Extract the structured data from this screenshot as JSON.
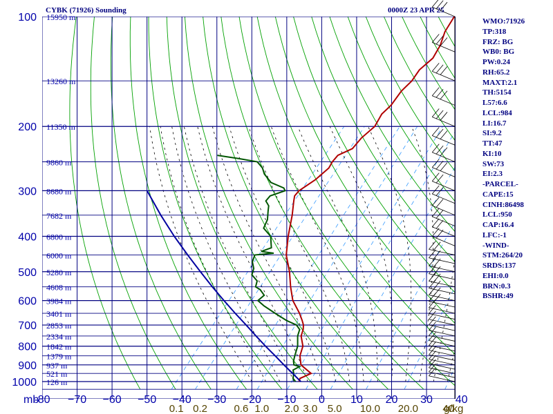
{
  "header": {
    "title": "CYBK (71926) Sounding",
    "time": "0000Z 23 APR 25"
  },
  "indices": [
    "WMO:71926",
    "TP:318",
    "FRZ: BG",
    "WB0: BG",
    "PW:0.24",
    "RH:65.2",
    "MAXT:2.1",
    "TH:5154",
    "L57:6.6",
    "LCL:984",
    "LI:16.7",
    "SI:9.2",
    "TT:47",
    "KI:10",
    "SW:73",
    "EI:2.3",
    "-PARCEL-",
    "CAPE:15",
    "CINH:86498",
    "LCL:950",
    "CAP:16.4",
    "LFC:-1",
    "-WIND-",
    "STM:264/20",
    "SRDS:137",
    "EHI:0.0",
    "BRN:0.3",
    "BSHR:49"
  ],
  "colors": {
    "grid": "#000080",
    "isotherm": "#000080",
    "dry_adiabat": "#00a000",
    "moist_adiabat": "#000000",
    "mixing_ratio": "#3399ff",
    "temperature": "#b00000",
    "dewpoint": "#005500",
    "parcel": "#0000a0",
    "axis_text": "#0000aa",
    "mixing_text": "#554400"
  },
  "chart_data": {
    "type": "line",
    "chart_kind": "skew-T log-p sounding",
    "y_scale": "log",
    "y_unit": "mb",
    "ylim": [
      1050,
      100
    ],
    "xlim": [
      -80,
      0
    ],
    "x_unit": "°C",
    "pressure_ticks": [
      100,
      200,
      300,
      400,
      500,
      600,
      700,
      800,
      900,
      1000
    ],
    "pressure_tick_labels": [
      "100",
      "200",
      "300",
      "400",
      "500",
      "600",
      "700",
      "800",
      "900",
      "1000"
    ],
    "temperature_ticks": [
      -80,
      -70,
      -60,
      -50,
      -40,
      -30,
      -20,
      -10,
      0,
      10,
      20,
      30,
      40
    ],
    "temperature_tick_labels": [
      "-80",
      "−70",
      "−60",
      "−50",
      "−40",
      "−30",
      "−20",
      "−10",
      "0",
      "10",
      "20",
      "30",
      "40"
    ],
    "x_axis_unit_label": "mb",
    "height_levels": [
      {
        "p": 100,
        "label": "15950 m"
      },
      {
        "p": 150,
        "label": "13260 m"
      },
      {
        "p": 200,
        "label": "11350 m"
      },
      {
        "p": 250,
        "label": "9860 m"
      },
      {
        "p": 300,
        "label": "8680 m"
      },
      {
        "p": 350,
        "label": "7682 m"
      },
      {
        "p": 400,
        "label": "6800 m"
      },
      {
        "p": 450,
        "label": "6000 m"
      },
      {
        "p": 500,
        "label": "5280 m"
      },
      {
        "p": 550,
        "label": "4608 m"
      },
      {
        "p": 600,
        "label": "3984 m"
      },
      {
        "p": 650,
        "label": "3401 m"
      },
      {
        "p": 700,
        "label": "2853 m"
      },
      {
        "p": 750,
        "label": "2334 m"
      },
      {
        "p": 800,
        "label": "1842 m"
      },
      {
        "p": 850,
        "label": "1379 m"
      },
      {
        "p": 900,
        "label": "937 m"
      },
      {
        "p": 950,
        "label": "521 m"
      },
      {
        "p": 1000,
        "label": "126 m"
      }
    ],
    "mixing_ratio_labels": [
      "0.1",
      "0.2",
      "0.6",
      "1.0",
      "2.0",
      "3.0",
      "5.0",
      "10.0",
      "20.0",
      "40"
    ],
    "mixing_ratio_values": [
      0.1,
      0.2,
      0.6,
      1.0,
      2.0,
      3.0,
      5.0,
      10.0,
      20.0,
      40.0
    ],
    "mixing_ratio_unit": "g/kg",
    "series": [
      {
        "key": "temperature",
        "points": [
          [
            1000,
            -6.5
          ],
          [
            980,
            -7
          ],
          [
            950,
            -5
          ],
          [
            930,
            -7
          ],
          [
            910,
            -9
          ],
          [
            900,
            -10
          ],
          [
            880,
            -11
          ],
          [
            850,
            -12.5
          ],
          [
            800,
            -14
          ],
          [
            750,
            -17
          ],
          [
            720,
            -18
          ],
          [
            700,
            -19
          ],
          [
            680,
            -20.5
          ],
          [
            650,
            -23
          ],
          [
            600,
            -28
          ],
          [
            550,
            -32
          ],
          [
            500,
            -36
          ],
          [
            450,
            -41
          ],
          [
            400,
            -45
          ],
          [
            350,
            -49
          ],
          [
            320,
            -52
          ],
          [
            310,
            -53
          ],
          [
            300,
            -53
          ],
          [
            280,
            -51
          ],
          [
            260,
            -50
          ],
          [
            250,
            -50.5
          ],
          [
            240,
            -50.5
          ],
          [
            230,
            -48
          ],
          [
            215,
            -48
          ],
          [
            200,
            -47
          ],
          [
            185,
            -48
          ],
          [
            175,
            -47.5
          ],
          [
            160,
            -48
          ],
          [
            150,
            -47.5
          ],
          [
            140,
            -48
          ],
          [
            130,
            -47
          ],
          [
            120,
            -48
          ],
          [
            110,
            -50
          ],
          [
            100,
            -51
          ]
        ]
      },
      {
        "key": "dewpoint",
        "points": [
          [
            1000,
            -7.5
          ],
          [
            980,
            -9
          ],
          [
            950,
            -10
          ],
          [
            930,
            -11
          ],
          [
            910,
            -10
          ],
          [
            900,
            -12
          ],
          [
            880,
            -13
          ],
          [
            850,
            -14
          ],
          [
            800,
            -15.5
          ],
          [
            750,
            -18
          ],
          [
            720,
            -19
          ],
          [
            700,
            -21
          ],
          [
            680,
            -25
          ],
          [
            650,
            -30
          ],
          [
            620,
            -35
          ],
          [
            600,
            -38
          ],
          [
            580,
            -37.5
          ],
          [
            560,
            -40
          ],
          [
            550,
            -42
          ],
          [
            530,
            -43
          ],
          [
            510,
            -46
          ],
          [
            490,
            -47
          ],
          [
            470,
            -49
          ],
          [
            450,
            -50
          ],
          [
            445,
            -45
          ],
          [
            440,
            -49
          ],
          [
            430,
            -47
          ],
          [
            420,
            -48
          ],
          [
            400,
            -50
          ],
          [
            380,
            -54
          ],
          [
            360,
            -55
          ],
          [
            340,
            -57
          ],
          [
            330,
            -58
          ],
          [
            320,
            -60
          ],
          [
            310,
            -60
          ],
          [
            300,
            -57
          ],
          [
            295,
            -58
          ],
          [
            285,
            -63
          ],
          [
            270,
            -67
          ],
          [
            260,
            -69
          ],
          [
            250,
            -72
          ],
          [
            245,
            -78
          ],
          [
            240,
            -85
          ]
        ]
      },
      {
        "key": "parcel",
        "points": [
          [
            1000,
            -6
          ],
          [
            950,
            -10.3
          ],
          [
            900,
            -14.9
          ],
          [
            850,
            -19.6
          ],
          [
            800,
            -24.7
          ],
          [
            750,
            -29.9
          ],
          [
            700,
            -35.4
          ],
          [
            650,
            -41.4
          ],
          [
            600,
            -47.7
          ],
          [
            550,
            -54.4
          ],
          [
            500,
            -61.5
          ],
          [
            450,
            -69.2
          ],
          [
            400,
            -77.6
          ],
          [
            350,
            -86.6
          ],
          [
            300,
            -96.5
          ]
        ]
      }
    ]
  }
}
